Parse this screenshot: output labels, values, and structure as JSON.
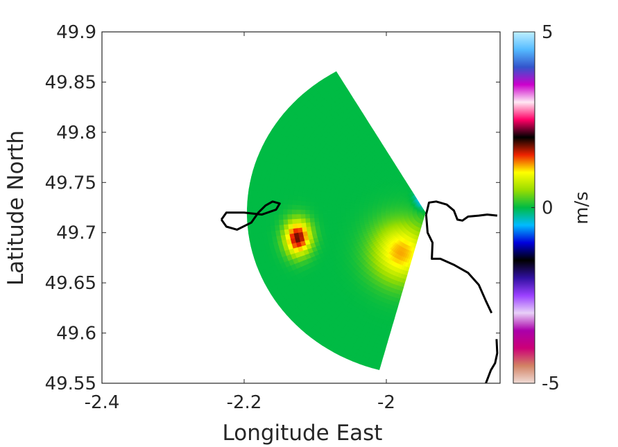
{
  "chart_data": {
    "type": "heatmap",
    "title": "",
    "xlabel": "Longitude East",
    "ylabel": "Latitude North",
    "xlim": [
      -2.4,
      -1.84
    ],
    "ylim": [
      49.55,
      49.9
    ],
    "x_ticks": [
      -2.4,
      -2.2,
      -2.0
    ],
    "x_tick_labels": [
      "-2.4",
      "-2.2",
      "-2"
    ],
    "y_ticks": [
      49.55,
      49.6,
      49.65,
      49.7,
      49.75,
      49.8,
      49.85,
      49.9
    ],
    "y_tick_labels": [
      "49.55",
      "49.6",
      "49.65",
      "49.7",
      "49.75",
      "49.8",
      "49.85",
      "49.9"
    ],
    "grid": false,
    "radar_origin": {
      "lon": -1.945,
      "lat": 49.72
    },
    "sector": {
      "r_min_km": 0,
      "r_max_km": 18,
      "bearing_from_deg": 195,
      "bearing_to_deg": 330
    },
    "colorbar": {
      "label": "m/s",
      "range": [
        -5,
        5
      ],
      "tick_values": [
        5,
        0,
        -5
      ],
      "tick_labels": [
        "5",
        "0",
        "-5"
      ],
      "stops": [
        {
          "value": -5,
          "color": "#f0dcd6"
        },
        {
          "value": -4.5,
          "color": "#d28264"
        },
        {
          "value": -4.0,
          "color": "#cc0077"
        },
        {
          "value": -3.5,
          "color": "#aa00aa"
        },
        {
          "value": -3.0,
          "color": "#e8d0f8"
        },
        {
          "value": -2.5,
          "color": "#9a40ff"
        },
        {
          "value": -2.0,
          "color": "#3010a0"
        },
        {
          "value": -1.5,
          "color": "#000000"
        },
        {
          "value": -1.0,
          "color": "#0000dd"
        },
        {
          "value": -0.5,
          "color": "#00bbff"
        },
        {
          "value": 0,
          "color": "#00bb44"
        },
        {
          "value": 0.5,
          "color": "#99dd00"
        },
        {
          "value": 1.0,
          "color": "#ffff00"
        },
        {
          "value": 1.5,
          "color": "#ee2200"
        },
        {
          "value": 2.0,
          "color": "#000000"
        },
        {
          "value": 2.5,
          "color": "#ff0066"
        },
        {
          "value": 3.0,
          "color": "#ffe8f4"
        },
        {
          "value": 3.5,
          "color": "#cc00cc"
        },
        {
          "value": 4.0,
          "color": "#3355cc"
        },
        {
          "value": 4.5,
          "color": "#55bbff"
        },
        {
          "value": 5,
          "color": "#bff0ff"
        }
      ]
    },
    "features": [
      {
        "value": 0.0,
        "lon": -2.04,
        "lat": 49.8,
        "spread_lon": 0.1,
        "spread_lat": 0.06
      },
      {
        "value": 1.8,
        "lon": -2.125,
        "lat": 49.695,
        "spread_lon": 0.018,
        "spread_lat": 0.017
      },
      {
        "value": 1.2,
        "lon": -1.98,
        "lat": 49.68,
        "spread_lon": 0.04,
        "spread_lat": 0.03
      },
      {
        "value": -0.7,
        "lon": -1.95,
        "lat": 49.735,
        "spread_lon": 0.01,
        "spread_lat": 0.01
      }
    ],
    "coastlines": [
      [
        [
          -2.232,
          49.713
        ],
        [
          -2.225,
          49.706
        ],
        [
          -2.21,
          49.703
        ],
        [
          -2.19,
          49.71
        ],
        [
          -2.18,
          49.72
        ],
        [
          -2.17,
          49.727
        ],
        [
          -2.16,
          49.731
        ],
        [
          -2.15,
          49.729
        ],
        [
          -2.155,
          49.723
        ],
        [
          -2.175,
          49.718
        ],
        [
          -2.2,
          49.72
        ],
        [
          -2.225,
          49.72
        ],
        [
          -2.232,
          49.713
        ]
      ],
      [
        [
          -1.944,
          49.718
        ],
        [
          -1.94,
          49.73
        ],
        [
          -1.93,
          49.731
        ],
        [
          -1.915,
          49.728
        ],
        [
          -1.905,
          49.722
        ],
        [
          -1.9,
          49.713
        ],
        [
          -1.893,
          49.712
        ],
        [
          -1.885,
          49.716
        ],
        [
          -1.87,
          49.717
        ],
        [
          -1.858,
          49.718
        ],
        [
          -1.844,
          49.717
        ]
      ],
      [
        [
          -1.944,
          49.718
        ],
        [
          -1.942,
          49.7
        ],
        [
          -1.935,
          49.69
        ],
        [
          -1.936,
          49.674
        ],
        [
          -1.924,
          49.674
        ],
        [
          -1.905,
          49.668
        ],
        [
          -1.885,
          49.66
        ],
        [
          -1.87,
          49.648
        ],
        [
          -1.86,
          49.632
        ],
        [
          -1.852,
          49.62
        ]
      ],
      [
        [
          -1.845,
          49.594
        ],
        [
          -1.844,
          49.58
        ],
        [
          -1.847,
          49.57
        ],
        [
          -1.853,
          49.563
        ],
        [
          -1.86,
          49.55
        ]
      ]
    ]
  }
}
